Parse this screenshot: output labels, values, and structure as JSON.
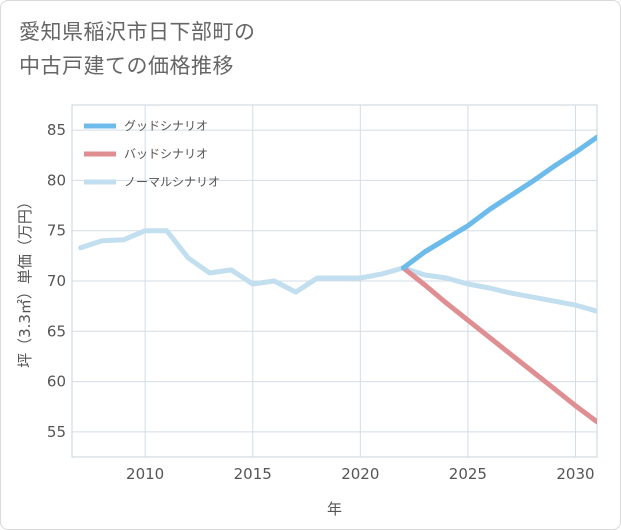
{
  "page": {
    "title_line1": "愛知県稲沢市日下部町の",
    "title_line2": "中古戸建ての価格推移"
  },
  "chart_data": {
    "type": "line",
    "xlabel": "年",
    "ylabel": "坪（3.3㎡）単価（万円）",
    "xlim": [
      2006.6,
      2031
    ],
    "ylim": [
      52.5,
      87.5
    ],
    "xticks": [
      2010,
      2015,
      2020,
      2025,
      2030
    ],
    "yticks": [
      55,
      60,
      65,
      70,
      75,
      80,
      85
    ],
    "grid": true,
    "legend_position": "top-left",
    "series": [
      {
        "name": "グッドシナリオ",
        "color": "#6cbbeb",
        "x": [
          2022,
          2023,
          2024,
          2025,
          2026,
          2027,
          2028,
          2029,
          2030,
          2031
        ],
        "values": [
          71.3,
          72.9,
          74.2,
          75.5,
          77.1,
          78.5,
          79.9,
          81.4,
          82.8,
          84.3
        ]
      },
      {
        "name": "バッドシナリオ",
        "color": "#df8f92",
        "x": [
          2022,
          2023,
          2024,
          2025,
          2026,
          2027,
          2028,
          2029,
          2030,
          2031
        ],
        "values": [
          71.3,
          69.6,
          67.8,
          66.1,
          64.4,
          62.7,
          61.0,
          59.3,
          57.6,
          56.0
        ]
      },
      {
        "name": "ノーマルシナリオ",
        "color": "#c2dfef",
        "x": [
          2007,
          2008,
          2009,
          2010,
          2011,
          2012,
          2013,
          2014,
          2015,
          2016,
          2017,
          2018,
          2019,
          2020,
          2021,
          2022,
          2023,
          2024,
          2025,
          2026,
          2027,
          2028,
          2029,
          2030,
          2031
        ],
        "values": [
          73.3,
          74.0,
          74.1,
          75.0,
          75.0,
          72.3,
          70.8,
          71.1,
          69.7,
          70.0,
          68.9,
          70.3,
          70.3,
          70.3,
          70.7,
          71.3,
          70.6,
          70.3,
          69.7,
          69.3,
          68.8,
          68.4,
          68.0,
          67.6,
          67.0
        ]
      }
    ]
  }
}
